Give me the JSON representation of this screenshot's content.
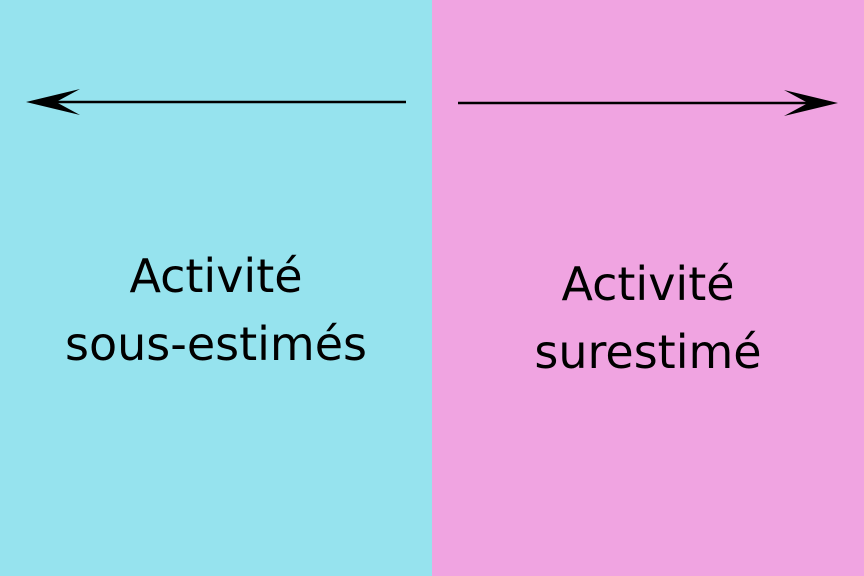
{
  "colors": {
    "left_background": "#96E3EE",
    "right_background": "#F0A4E1",
    "arrow": "#000000",
    "text": "#000000"
  },
  "left": {
    "arrow_icon": "arrow-left-icon",
    "line1": "Activité",
    "line2": "sous-estimés"
  },
  "right": {
    "arrow_icon": "arrow-right-icon",
    "line1": "Activité",
    "line2": "surestimé"
  }
}
